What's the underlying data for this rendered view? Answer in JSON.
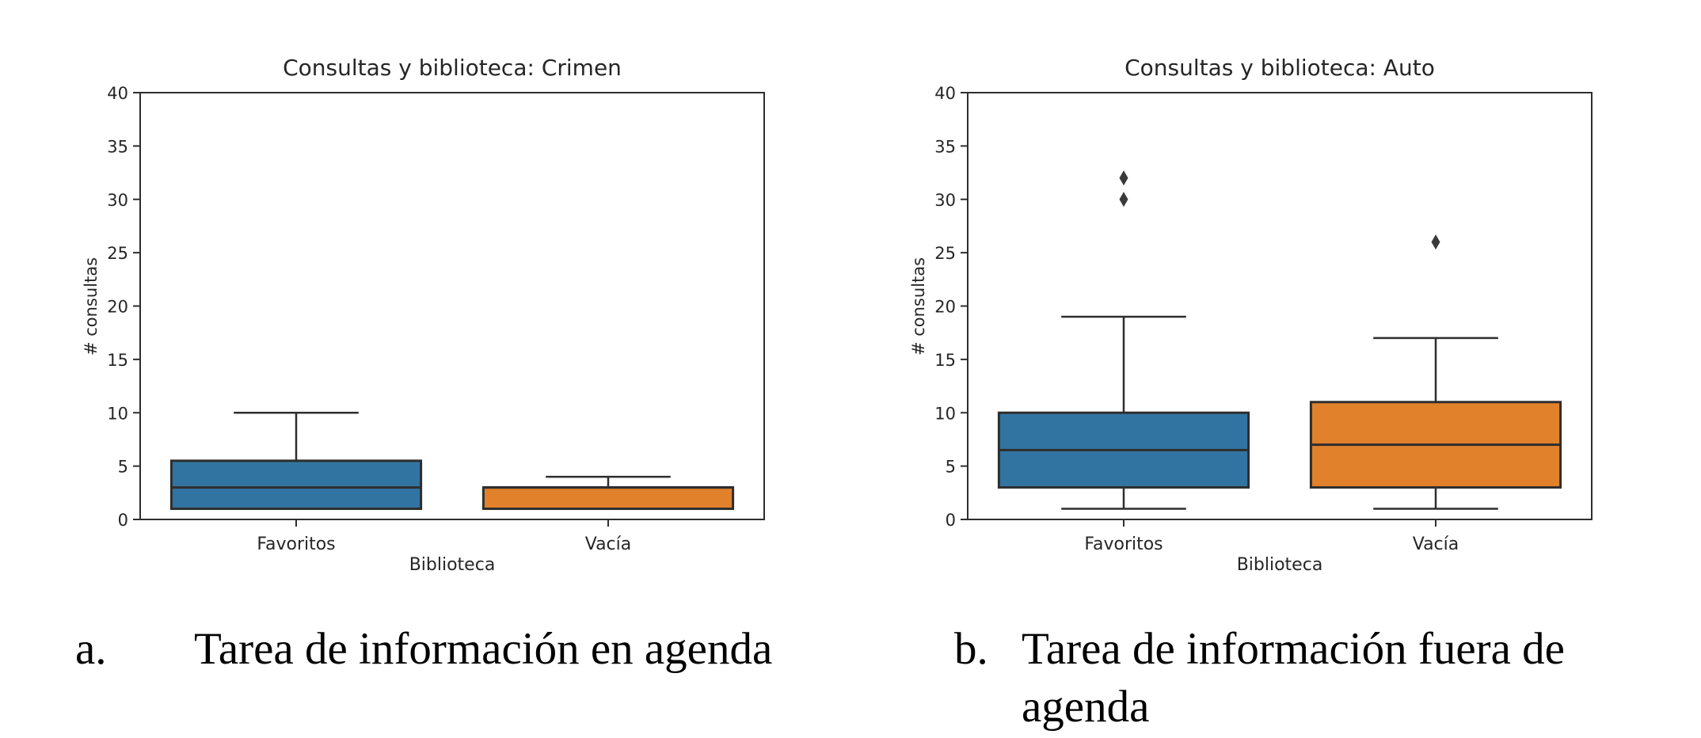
{
  "chart_data": [
    {
      "type": "box",
      "title": "Consultas y biblioteca: Crimen",
      "xlabel": "Biblioteca",
      "ylabel": "# consultas",
      "ylim": [
        0,
        40
      ],
      "yticks": [
        0,
        5,
        10,
        15,
        20,
        25,
        30,
        35,
        40
      ],
      "categories": [
        "Favoritos",
        "Vacía"
      ],
      "grid": false,
      "boxes": [
        {
          "category": "Favoritos",
          "color": "#3274A1",
          "whisker_low": 1,
          "q1": 1,
          "median": 3,
          "q3": 5.5,
          "whisker_high": 10,
          "outliers": []
        },
        {
          "category": "Vacía",
          "color": "#E1812C",
          "whisker_low": 1,
          "q1": 1,
          "median": 3,
          "q3": 3,
          "whisker_high": 4,
          "outliers": []
        }
      ]
    },
    {
      "type": "box",
      "title": "Consultas y biblioteca: Auto",
      "xlabel": "Biblioteca",
      "ylabel": "# consultas",
      "ylim": [
        0,
        40
      ],
      "yticks": [
        0,
        5,
        10,
        15,
        20,
        25,
        30,
        35,
        40
      ],
      "categories": [
        "Favoritos",
        "Vacía"
      ],
      "grid": false,
      "boxes": [
        {
          "category": "Favoritos",
          "color": "#3274A1",
          "whisker_low": 1,
          "q1": 3,
          "median": 6.5,
          "q3": 10,
          "whisker_high": 19,
          "outliers": [
            30,
            32
          ]
        },
        {
          "category": "Vacía",
          "color": "#E1812C",
          "whisker_low": 1,
          "q1": 3,
          "median": 7,
          "q3": 11,
          "whisker_high": 17,
          "outliers": [
            26
          ]
        }
      ]
    }
  ],
  "captions": [
    {
      "label": "a.",
      "text": "Tarea de información en agenda"
    },
    {
      "label": "b.",
      "text": "Tarea de información fuera de agenda"
    }
  ],
  "style_colors": {
    "box_blue": "#3274A1",
    "box_orange": "#E1812C",
    "line": "#2e2e2e",
    "outlier": "#3a3a3a",
    "text": "#262626",
    "background": "#ffffff"
  }
}
